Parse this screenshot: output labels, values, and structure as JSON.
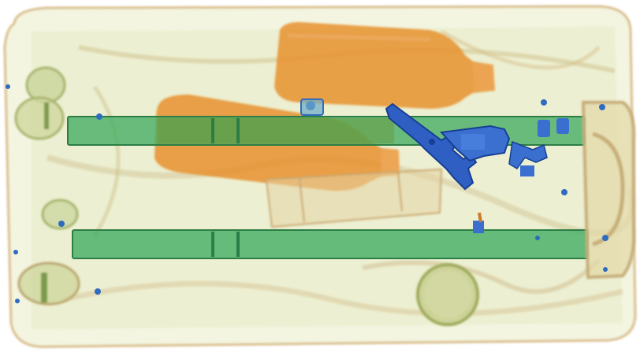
{
  "scene": {
    "kind": "x-ray baggage scan",
    "colors": {
      "background": "#ffffff",
      "organic": "#e8912f",
      "organic_light": "#f3c48a",
      "mixed": "#b6cc86",
      "mixed_dark": "#7fa35a",
      "inorganic": "#43b06a",
      "metal": "#3a6fd0",
      "metal_dark": "#1e4aa8"
    },
    "objects": [
      {
        "name": "suitcase-shell",
        "material": "mixed"
      },
      {
        "name": "bottle-upper",
        "material": "organic"
      },
      {
        "name": "bottle-lower",
        "material": "organic"
      },
      {
        "name": "handle-rail-upper",
        "material": "inorganic"
      },
      {
        "name": "handle-rail-lower",
        "material": "inorganic"
      },
      {
        "name": "pistol",
        "material": "metal"
      },
      {
        "name": "round-container",
        "material": "mixed"
      },
      {
        "name": "wheel-left-upper",
        "material": "mixed"
      },
      {
        "name": "wheel-left-lower",
        "material": "mixed"
      },
      {
        "name": "handle-grip-right",
        "material": "mixed"
      }
    ]
  }
}
